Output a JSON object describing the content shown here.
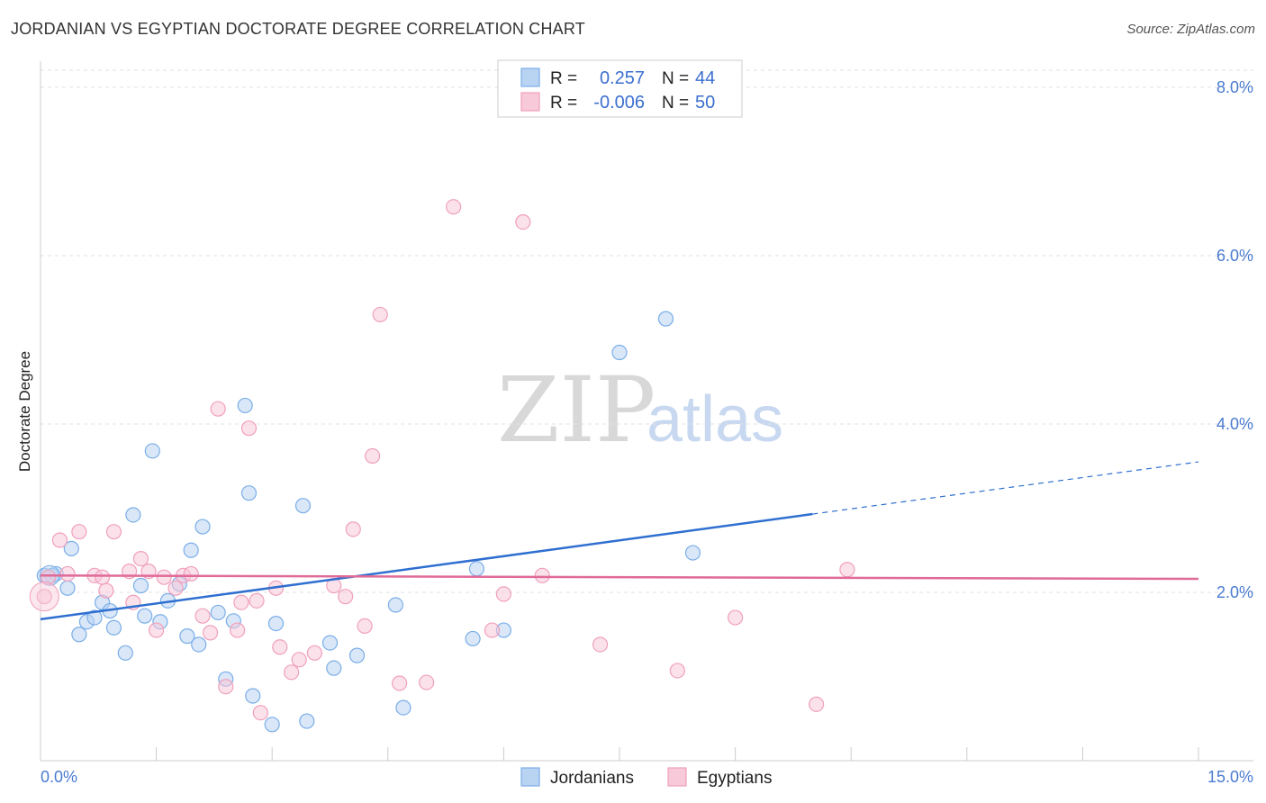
{
  "chart_data": {
    "type": "scatter",
    "title": "JORDANIAN VS EGYPTIAN DOCTORATE DEGREE CORRELATION CHART",
    "source": "Source: ZipAtlas.com",
    "xlabel": "",
    "ylabel": "Doctorate Degree",
    "xlim": [
      0,
      15
    ],
    "ylim": [
      0,
      8.4
    ],
    "x_tick_labels": [
      "0.0%",
      "15.0%"
    ],
    "y_ticks": [
      2,
      4,
      6,
      8
    ],
    "y_tick_labels": [
      "2.0%",
      "4.0%",
      "6.0%",
      "8.0%"
    ],
    "watermark": {
      "zip": "ZIP",
      "atlas": "atlas"
    },
    "legend": {
      "r_label": "R =",
      "n_label": "N =",
      "rows": [
        {
          "r": "0.257",
          "n": "44"
        },
        {
          "r": "-0.006",
          "n": "50"
        }
      ]
    },
    "series": [
      {
        "name": "Jordanians",
        "color": "#7aaee8",
        "fill": "#b9d3f3",
        "line_color": "#2f6fd0",
        "trend": {
          "x0": 0,
          "y0": 1.68,
          "x1": 10.0,
          "y1": 2.93,
          "x_dash_end": 15.0,
          "y_dash_end": 3.55
        },
        "points": [
          [
            0.05,
            2.2
          ],
          [
            0.2,
            2.22
          ],
          [
            0.35,
            2.05
          ],
          [
            0.4,
            2.52
          ],
          [
            0.5,
            1.5
          ],
          [
            0.6,
            1.65
          ],
          [
            0.7,
            1.7
          ],
          [
            0.8,
            1.88
          ],
          [
            0.9,
            1.78
          ],
          [
            0.95,
            1.58
          ],
          [
            1.1,
            1.28
          ],
          [
            1.2,
            2.92
          ],
          [
            1.3,
            2.08
          ],
          [
            1.35,
            1.72
          ],
          [
            1.45,
            3.68
          ],
          [
            1.55,
            1.65
          ],
          [
            1.65,
            1.9
          ],
          [
            1.8,
            2.1
          ],
          [
            1.9,
            1.48
          ],
          [
            1.95,
            2.5
          ],
          [
            2.05,
            1.38
          ],
          [
            2.1,
            2.78
          ],
          [
            2.3,
            1.76
          ],
          [
            2.4,
            0.97
          ],
          [
            2.5,
            1.66
          ],
          [
            2.65,
            4.22
          ],
          [
            2.7,
            3.18
          ],
          [
            2.75,
            0.77
          ],
          [
            3.0,
            0.43
          ],
          [
            3.05,
            1.63
          ],
          [
            3.4,
            3.03
          ],
          [
            3.45,
            0.47
          ],
          [
            3.75,
            1.4
          ],
          [
            3.8,
            1.1
          ],
          [
            4.1,
            1.25
          ],
          [
            4.6,
            1.85
          ],
          [
            4.7,
            0.63
          ],
          [
            5.6,
            1.45
          ],
          [
            5.65,
            2.28
          ],
          [
            6.0,
            1.55
          ],
          [
            7.5,
            4.85
          ],
          [
            8.1,
            5.25
          ],
          [
            8.45,
            2.47
          ],
          [
            0.15,
            2.2
          ]
        ]
      },
      {
        "name": "Egyptians",
        "color": "#f0a0bc",
        "fill": "#f8c9d9",
        "line_color": "#e06a98",
        "trend": {
          "x0": 0,
          "y0": 2.2,
          "x1": 15.0,
          "y1": 2.16
        },
        "points": [
          [
            0.05,
            1.95
          ],
          [
            0.1,
            2.18
          ],
          [
            0.25,
            2.62
          ],
          [
            0.35,
            2.22
          ],
          [
            0.5,
            2.72
          ],
          [
            0.7,
            2.2
          ],
          [
            0.8,
            2.18
          ],
          [
            0.85,
            2.02
          ],
          [
            0.95,
            2.72
          ],
          [
            1.15,
            2.25
          ],
          [
            1.2,
            1.88
          ],
          [
            1.3,
            2.4
          ],
          [
            1.4,
            2.25
          ],
          [
            1.5,
            1.55
          ],
          [
            1.6,
            2.18
          ],
          [
            1.75,
            2.05
          ],
          [
            1.85,
            2.2
          ],
          [
            1.95,
            2.22
          ],
          [
            2.1,
            1.72
          ],
          [
            2.2,
            1.52
          ],
          [
            2.3,
            4.18
          ],
          [
            2.4,
            0.88
          ],
          [
            2.55,
            1.55
          ],
          [
            2.6,
            1.88
          ],
          [
            2.7,
            3.95
          ],
          [
            2.8,
            1.9
          ],
          [
            2.85,
            0.57
          ],
          [
            3.05,
            2.05
          ],
          [
            3.1,
            1.35
          ],
          [
            3.25,
            1.05
          ],
          [
            3.35,
            1.2
          ],
          [
            3.55,
            1.28
          ],
          [
            3.8,
            2.08
          ],
          [
            3.95,
            1.95
          ],
          [
            4.05,
            2.75
          ],
          [
            4.2,
            1.6
          ],
          [
            4.3,
            3.62
          ],
          [
            4.4,
            5.3
          ],
          [
            4.65,
            0.92
          ],
          [
            5.0,
            0.93
          ],
          [
            5.35,
            6.58
          ],
          [
            5.85,
            1.55
          ],
          [
            6.0,
            1.98
          ],
          [
            6.25,
            6.4
          ],
          [
            6.5,
            2.2
          ],
          [
            7.25,
            1.38
          ],
          [
            8.25,
            1.07
          ],
          [
            9.0,
            1.7
          ],
          [
            10.05,
            0.67
          ],
          [
            10.45,
            2.27
          ]
        ]
      }
    ]
  }
}
